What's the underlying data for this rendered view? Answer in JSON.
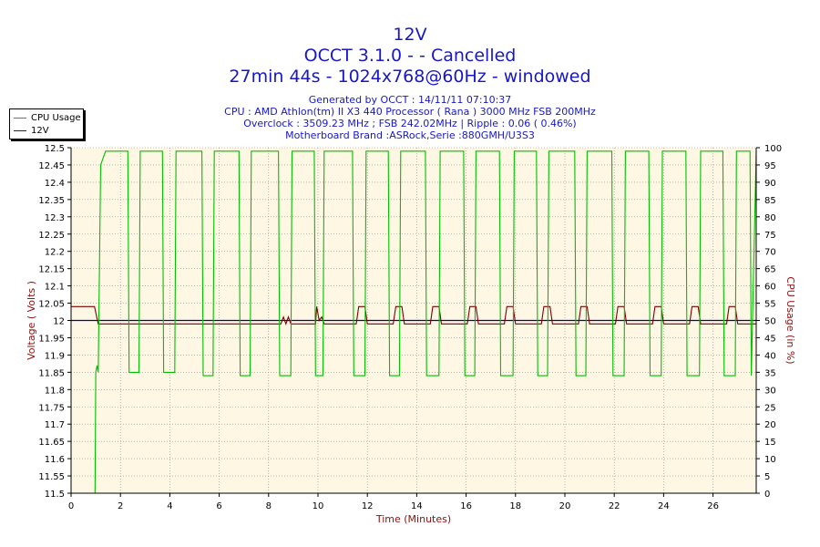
{
  "header": {
    "title": "12V",
    "line2": "OCCT 3.1.0 -  - Cancelled",
    "line3": "27min 44s - 1024x768@60Hz - windowed",
    "info": [
      "Generated by OCCT : 14/11/11 07:10:37",
      "CPU : AMD Athlon(tm) II X3 440 Processor ( Rana ) 3000 MHz FSB 200MHz",
      "Overclock : 3509.23 MHz ; FSB 242.02MHz | Ripple : 0.06 ( 0.46%)",
      "Motherboard Brand :ASRock,Serie :880GMH/U3S3"
    ]
  },
  "legend": {
    "items": [
      {
        "label": "CPU Usage",
        "color": "#00c000"
      },
      {
        "label": "12V",
        "color": "#800000"
      }
    ]
  },
  "chart_data": {
    "type": "line",
    "title": "12V",
    "xlabel": "Time (Minutes)",
    "ylabel": "Voltage ( Volts )",
    "y2label": "CPU Usage (in %)",
    "xlim": [
      0,
      27.75
    ],
    "ylim": [
      11.5,
      12.5
    ],
    "y2lim": [
      0,
      100
    ],
    "x_ticks": [
      "0",
      "2",
      "4",
      "6",
      "8",
      "10",
      "12",
      "14",
      "16",
      "18",
      "20",
      "22",
      "24",
      "26"
    ],
    "y_ticks": [
      "11.5",
      "11.55",
      "11.6",
      "11.65",
      "11.7",
      "11.75",
      "11.8",
      "11.85",
      "11.9",
      "11.95",
      "12",
      "12.05",
      "12.1",
      "12.15",
      "12.2",
      "12.25",
      "12.3",
      "12.35",
      "12.4",
      "12.45",
      "12.5"
    ],
    "y2_ticks": [
      "0",
      "5",
      "10",
      "15",
      "20",
      "25",
      "30",
      "35",
      "40",
      "45",
      "50",
      "55",
      "60",
      "65",
      "70",
      "75",
      "80",
      "85",
      "90",
      "95",
      "100"
    ],
    "reference_line": {
      "y": 12.0,
      "color": "#0000a0"
    },
    "plot_background": "#fdf7e4",
    "grid": true,
    "series": [
      {
        "name": "12V",
        "axis": "left",
        "color": "#800000",
        "points": [
          [
            0,
            12.04
          ],
          [
            0.95,
            12.04
          ],
          [
            1.1,
            11.99
          ],
          [
            8.5,
            11.99
          ],
          [
            8.6,
            12.01
          ],
          [
            8.7,
            11.99
          ],
          [
            8.8,
            12.01
          ],
          [
            8.9,
            11.99
          ],
          [
            9.9,
            11.99
          ],
          [
            9.95,
            12.04
          ],
          [
            10.05,
            12.0
          ],
          [
            10.15,
            12.01
          ],
          [
            10.25,
            11.99
          ],
          [
            11.55,
            11.99
          ],
          [
            11.65,
            12.04
          ],
          [
            11.9,
            12.04
          ],
          [
            12.0,
            11.99
          ],
          [
            13.05,
            11.99
          ],
          [
            13.15,
            12.04
          ],
          [
            13.4,
            12.04
          ],
          [
            13.5,
            11.99
          ],
          [
            14.55,
            11.99
          ],
          [
            14.65,
            12.04
          ],
          [
            14.9,
            12.04
          ],
          [
            15.0,
            11.99
          ],
          [
            16.05,
            11.99
          ],
          [
            16.15,
            12.04
          ],
          [
            16.4,
            12.04
          ],
          [
            16.5,
            11.99
          ],
          [
            17.55,
            11.99
          ],
          [
            17.65,
            12.04
          ],
          [
            17.9,
            12.04
          ],
          [
            18.0,
            11.99
          ],
          [
            19.05,
            11.99
          ],
          [
            19.15,
            12.04
          ],
          [
            19.4,
            12.04
          ],
          [
            19.5,
            11.99
          ],
          [
            20.55,
            11.99
          ],
          [
            20.65,
            12.04
          ],
          [
            20.9,
            12.04
          ],
          [
            21.0,
            11.99
          ],
          [
            22.05,
            11.99
          ],
          [
            22.15,
            12.04
          ],
          [
            22.4,
            12.04
          ],
          [
            22.5,
            11.99
          ],
          [
            23.55,
            11.99
          ],
          [
            23.65,
            12.04
          ],
          [
            23.9,
            12.04
          ],
          [
            24.0,
            11.99
          ],
          [
            25.05,
            11.99
          ],
          [
            25.15,
            12.04
          ],
          [
            25.4,
            12.04
          ],
          [
            25.5,
            11.99
          ],
          [
            26.55,
            11.99
          ],
          [
            26.65,
            12.04
          ],
          [
            26.9,
            12.04
          ],
          [
            27.0,
            11.99
          ],
          [
            27.75,
            11.99
          ]
        ]
      },
      {
        "name": "CPU Usage",
        "axis": "right",
        "color": "#00c000",
        "points": [
          [
            0.97,
            0
          ],
          [
            1.0,
            35
          ],
          [
            1.05,
            37
          ],
          [
            1.1,
            35
          ],
          [
            1.2,
            95
          ],
          [
            1.4,
            99
          ],
          [
            2.3,
            99
          ],
          [
            2.35,
            35
          ],
          [
            2.75,
            35
          ],
          [
            2.8,
            99
          ],
          [
            3.7,
            99
          ],
          [
            3.75,
            35
          ],
          [
            4.2,
            35
          ],
          [
            4.25,
            99
          ],
          [
            5.3,
            99
          ],
          [
            5.35,
            34
          ],
          [
            5.75,
            34
          ],
          [
            5.8,
            99
          ],
          [
            6.8,
            99
          ],
          [
            6.85,
            34
          ],
          [
            7.25,
            34
          ],
          [
            7.3,
            99
          ],
          [
            8.4,
            99
          ],
          [
            8.45,
            34
          ],
          [
            8.9,
            34
          ],
          [
            8.95,
            99
          ],
          [
            9.85,
            99
          ],
          [
            9.9,
            34
          ],
          [
            10.2,
            34
          ],
          [
            10.25,
            99
          ],
          [
            11.4,
            99
          ],
          [
            11.45,
            34
          ],
          [
            11.9,
            34
          ],
          [
            11.95,
            99
          ],
          [
            12.85,
            99
          ],
          [
            12.9,
            34
          ],
          [
            13.3,
            34
          ],
          [
            13.35,
            99
          ],
          [
            14.35,
            99
          ],
          [
            14.4,
            34
          ],
          [
            14.9,
            34
          ],
          [
            14.95,
            99
          ],
          [
            15.9,
            99
          ],
          [
            15.95,
            34
          ],
          [
            16.35,
            34
          ],
          [
            16.4,
            99
          ],
          [
            17.35,
            99
          ],
          [
            17.4,
            34
          ],
          [
            17.9,
            34
          ],
          [
            17.95,
            99
          ],
          [
            18.85,
            99
          ],
          [
            18.9,
            34
          ],
          [
            19.3,
            34
          ],
          [
            19.35,
            99
          ],
          [
            20.4,
            99
          ],
          [
            20.45,
            34
          ],
          [
            20.85,
            34
          ],
          [
            20.9,
            99
          ],
          [
            21.9,
            99
          ],
          [
            21.95,
            34
          ],
          [
            22.4,
            34
          ],
          [
            22.45,
            99
          ],
          [
            23.4,
            99
          ],
          [
            23.45,
            34
          ],
          [
            23.9,
            34
          ],
          [
            23.95,
            99
          ],
          [
            24.9,
            99
          ],
          [
            24.95,
            34
          ],
          [
            25.45,
            34
          ],
          [
            25.5,
            99
          ],
          [
            26.4,
            99
          ],
          [
            26.45,
            34
          ],
          [
            26.9,
            34
          ],
          [
            26.95,
            99
          ],
          [
            27.5,
            99
          ],
          [
            27.55,
            34
          ],
          [
            27.75,
            99
          ]
        ]
      }
    ]
  }
}
